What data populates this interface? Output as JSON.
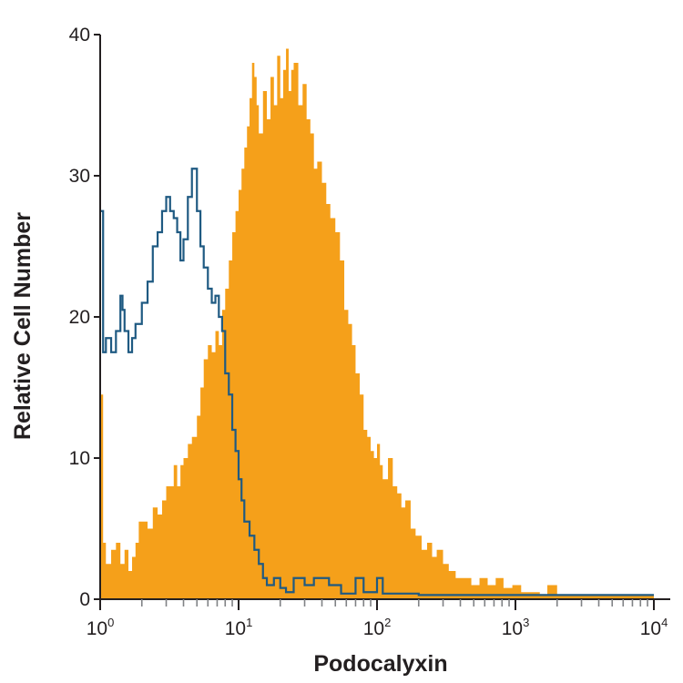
{
  "chart_data": {
    "type": "histogram",
    "xlabel": "Podocalyxin",
    "ylabel": "Relative Cell Number",
    "x_scale": "log",
    "xlim": [
      1,
      10000
    ],
    "ylim": [
      0,
      40
    ],
    "x_ticks": [
      {
        "value": 1,
        "base": "10",
        "exp": "0"
      },
      {
        "value": 10,
        "base": "10",
        "exp": "1"
      },
      {
        "value": 100,
        "base": "10",
        "exp": "2"
      },
      {
        "value": 1000,
        "base": "10",
        "exp": "3"
      },
      {
        "value": 10000,
        "base": "10",
        "exp": "4"
      }
    ],
    "y_ticks": [
      {
        "value": 0,
        "label": "0"
      },
      {
        "value": 10,
        "label": "10"
      },
      {
        "value": 20,
        "label": "20"
      },
      {
        "value": 30,
        "label": "30"
      },
      {
        "value": 40,
        "label": "40"
      }
    ],
    "grid": false,
    "series": [
      {
        "style": "filled",
        "color": "#f5a01a",
        "points": [
          [
            1.0,
            14.5
          ],
          [
            1.05,
            4.0
          ],
          [
            1.1,
            2.5
          ],
          [
            1.2,
            3.5
          ],
          [
            1.3,
            4.0
          ],
          [
            1.4,
            2.5
          ],
          [
            1.5,
            3.5
          ],
          [
            1.6,
            2.0
          ],
          [
            1.7,
            3.0
          ],
          [
            1.8,
            4.0
          ],
          [
            1.9,
            5.5
          ],
          [
            2.0,
            5.5
          ],
          [
            2.2,
            5.0
          ],
          [
            2.4,
            6.5
          ],
          [
            2.6,
            6.0
          ],
          [
            2.8,
            7.0
          ],
          [
            3.0,
            8.0
          ],
          [
            3.2,
            8.0
          ],
          [
            3.4,
            9.5
          ],
          [
            3.6,
            8.0
          ],
          [
            3.8,
            9.5
          ],
          [
            4.0,
            10.0
          ],
          [
            4.3,
            11.0
          ],
          [
            4.6,
            11.5
          ],
          [
            5.0,
            13.0
          ],
          [
            5.3,
            15.0
          ],
          [
            5.6,
            17.0
          ],
          [
            6.0,
            18.0
          ],
          [
            6.4,
            17.5
          ],
          [
            6.8,
            19.0
          ],
          [
            7.2,
            18.0
          ],
          [
            7.6,
            20.5
          ],
          [
            8.0,
            22.0
          ],
          [
            8.5,
            24.0
          ],
          [
            9.0,
            26.0
          ],
          [
            9.5,
            27.5
          ],
          [
            10.0,
            29.0
          ],
          [
            10.5,
            30.5
          ],
          [
            11.0,
            32.0
          ],
          [
            11.5,
            33.5
          ],
          [
            12.0,
            35.5
          ],
          [
            12.5,
            38.0
          ],
          [
            13.0,
            37.0
          ],
          [
            13.5,
            35.0
          ],
          [
            14.0,
            33.0
          ],
          [
            15.0,
            36.0
          ],
          [
            16.0,
            34.0
          ],
          [
            17.0,
            37.0
          ],
          [
            18.0,
            35.0
          ],
          [
            19.0,
            38.5
          ],
          [
            20.0,
            35.5
          ],
          [
            21.0,
            37.5
          ],
          [
            22.0,
            39.0
          ],
          [
            23.0,
            36.0
          ],
          [
            24.0,
            37.5
          ],
          [
            25.0,
            38.0
          ],
          [
            27.0,
            35.0
          ],
          [
            29.0,
            36.5
          ],
          [
            31.0,
            34.0
          ],
          [
            33.0,
            33.0
          ],
          [
            35.0,
            30.5
          ],
          [
            37.0,
            31.0
          ],
          [
            40.0,
            29.5
          ],
          [
            43.0,
            28.0
          ],
          [
            46.0,
            27.0
          ],
          [
            50.0,
            26.0
          ],
          [
            54.0,
            24.0
          ],
          [
            58.0,
            20.5
          ],
          [
            62.0,
            19.5
          ],
          [
            66.0,
            18.0
          ],
          [
            70.0,
            16.0
          ],
          [
            75.0,
            14.5
          ],
          [
            80.0,
            12.0
          ],
          [
            85.0,
            11.5
          ],
          [
            90.0,
            10.5
          ],
          [
            95.0,
            10.0
          ],
          [
            100.0,
            11.0
          ],
          [
            105.0,
            9.5
          ],
          [
            110.0,
            8.5
          ],
          [
            120.0,
            10.0
          ],
          [
            130.0,
            8.0
          ],
          [
            140.0,
            7.5
          ],
          [
            150.0,
            6.5
          ],
          [
            160.0,
            7.0
          ],
          [
            175.0,
            5.0
          ],
          [
            190.0,
            4.5
          ],
          [
            210.0,
            3.5
          ],
          [
            230.0,
            4.0
          ],
          [
            250.0,
            3.0
          ],
          [
            270.0,
            3.5
          ],
          [
            300.0,
            2.5
          ],
          [
            330.0,
            2.0
          ],
          [
            370.0,
            1.5
          ],
          [
            420.0,
            1.5
          ],
          [
            480.0,
            1.0
          ],
          [
            550.0,
            1.5
          ],
          [
            630.0,
            1.0
          ],
          [
            720.0,
            1.5
          ],
          [
            820.0,
            0.8
          ],
          [
            950.0,
            1.0
          ],
          [
            1100.0,
            0.5
          ],
          [
            1300.0,
            0.5
          ],
          [
            1500.0,
            0.3
          ],
          [
            1700.0,
            1.0
          ],
          [
            2000.0,
            0.3
          ],
          [
            10000.0,
            0.0
          ]
        ]
      },
      {
        "style": "step-outline",
        "color": "#1f5a82",
        "points": [
          [
            1.0,
            27.5
          ],
          [
            1.05,
            17.5
          ],
          [
            1.1,
            18.5
          ],
          [
            1.2,
            17.5
          ],
          [
            1.3,
            19.0
          ],
          [
            1.4,
            21.5
          ],
          [
            1.45,
            20.5
          ],
          [
            1.5,
            19.0
          ],
          [
            1.6,
            17.5
          ],
          [
            1.7,
            18.5
          ],
          [
            1.8,
            19.5
          ],
          [
            2.0,
            21.0
          ],
          [
            2.2,
            22.5
          ],
          [
            2.4,
            25.0
          ],
          [
            2.6,
            26.0
          ],
          [
            2.8,
            27.5
          ],
          [
            3.0,
            28.5
          ],
          [
            3.2,
            27.5
          ],
          [
            3.4,
            27.0
          ],
          [
            3.6,
            26.0
          ],
          [
            3.8,
            24.0
          ],
          [
            4.0,
            25.5
          ],
          [
            4.3,
            28.5
          ],
          [
            4.6,
            30.5
          ],
          [
            5.0,
            27.5
          ],
          [
            5.3,
            25.0
          ],
          [
            5.6,
            23.5
          ],
          [
            6.0,
            22.0
          ],
          [
            6.4,
            21.0
          ],
          [
            6.8,
            21.5
          ],
          [
            7.2,
            20.0
          ],
          [
            7.6,
            19.0
          ],
          [
            8.0,
            16.0
          ],
          [
            8.5,
            14.5
          ],
          [
            9.0,
            12.0
          ],
          [
            9.5,
            10.5
          ],
          [
            10.0,
            8.5
          ],
          [
            10.5,
            7.0
          ],
          [
            11.0,
            5.5
          ],
          [
            12.0,
            4.5
          ],
          [
            13.0,
            3.5
          ],
          [
            14.0,
            2.5
          ],
          [
            15.0,
            1.5
          ],
          [
            16.0,
            1.0
          ],
          [
            18.0,
            1.5
          ],
          [
            20.0,
            0.8
          ],
          [
            22.0,
            0.5
          ],
          [
            25.0,
            1.5
          ],
          [
            30.0,
            1.0
          ],
          [
            35.0,
            1.5
          ],
          [
            45.0,
            1.0
          ],
          [
            55.0,
            0.4
          ],
          [
            70.0,
            1.5
          ],
          [
            80.0,
            0.5
          ],
          [
            100.0,
            1.5
          ],
          [
            110.0,
            0.4
          ],
          [
            200.0,
            0.3
          ],
          [
            1000.0,
            0.3
          ],
          [
            10000.0,
            0.3
          ]
        ]
      }
    ]
  }
}
